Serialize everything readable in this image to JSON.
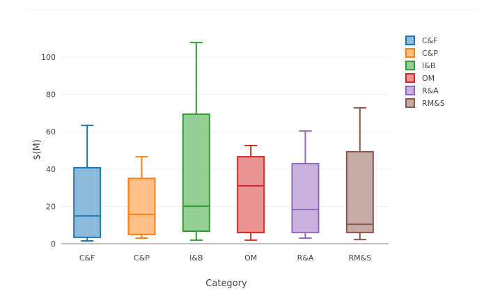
{
  "chart_data": {
    "type": "box",
    "title": "",
    "xlabel": "Category",
    "ylabel": "$(M)",
    "ylim": [
      0,
      108
    ],
    "yticks": [
      0,
      20,
      40,
      60,
      80,
      100
    ],
    "grid": true,
    "legend_position": "top-right",
    "categories": [
      "C&F",
      "C&P",
      "I&B",
      "OM",
      "R&A",
      "RM&S"
    ],
    "series": [
      {
        "name": "C&F",
        "color": "#1f77b4",
        "fill": "#8fbbda",
        "min": 1.5,
        "q1": 3.4,
        "median": 14.9,
        "q3": 40.7,
        "max": 63.4
      },
      {
        "name": "C&P",
        "color": "#ff7f0e",
        "fill": "#ffbf86",
        "min": 3.0,
        "q1": 4.9,
        "median": 15.7,
        "q3": 35.0,
        "max": 46.6
      },
      {
        "name": "I&B",
        "color": "#2ca02c",
        "fill": "#95cf95",
        "min": 1.9,
        "q1": 6.7,
        "median": 20.1,
        "q3": 69.4,
        "max": 107.8
      },
      {
        "name": "OM",
        "color": "#d62728",
        "fill": "#ea9393",
        "min": 1.9,
        "q1": 6.0,
        "median": 31.0,
        "q3": 46.6,
        "max": 52.6
      },
      {
        "name": "R&A",
        "color": "#9467bd",
        "fill": "#c9b3de",
        "min": 3.0,
        "q1": 6.0,
        "median": 18.3,
        "q3": 42.9,
        "max": 60.4
      },
      {
        "name": "RM&S",
        "color": "#8c564b",
        "fill": "#c5aaa5",
        "min": 2.2,
        "q1": 6.0,
        "median": 10.4,
        "q3": 49.3,
        "max": 72.8
      }
    ]
  }
}
